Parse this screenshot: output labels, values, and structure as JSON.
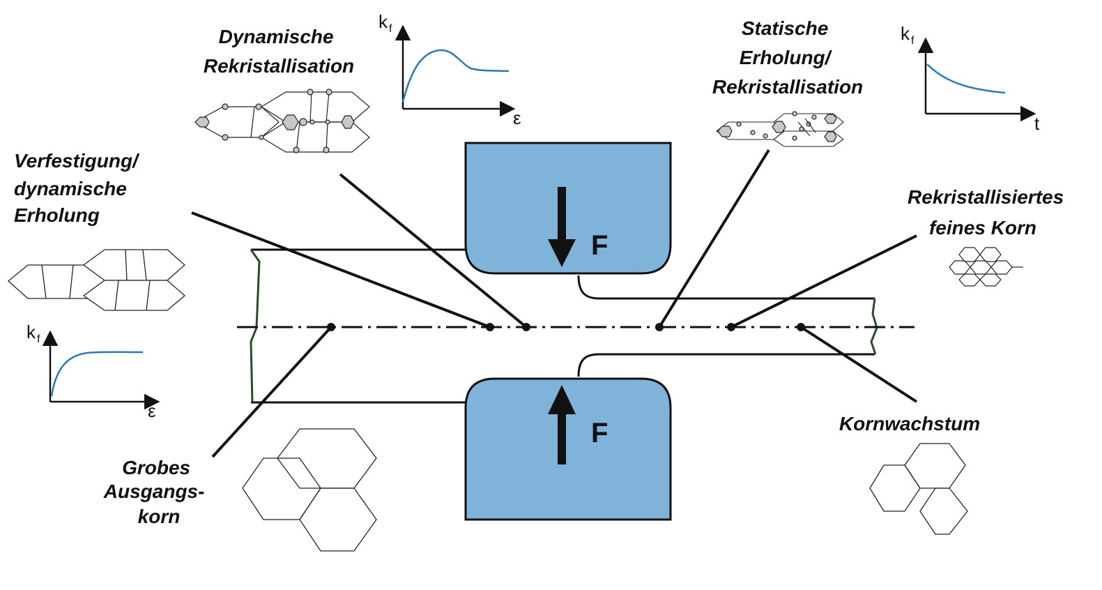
{
  "colors": {
    "die_fill": "#7fb3d9",
    "curve": "#2a78b8",
    "ink": "#111111"
  },
  "labels": {
    "dyn_rex": [
      "Dynamische",
      "Rekristallisation"
    ],
    "stat_rex": [
      "Statische",
      "Erholung/",
      "Rekristallisation"
    ],
    "verfestigung": [
      "Verfestigung/",
      "dynamische",
      "Erholung"
    ],
    "rex_fine": [
      "Rekristallisiertes",
      "feines Korn"
    ],
    "grobes": [
      "Grobes",
      "Ausgangs-",
      "korn"
    ],
    "kornwachstum": [
      "Kornwachstum"
    ]
  },
  "force_label": "F",
  "axes": {
    "y_main": "k",
    "y_sub": "f",
    "x_strain": "ε",
    "x_time": "t"
  },
  "icons": {
    "arrow_down": "force-arrow-down-icon",
    "arrow_up": "force-arrow-up-icon"
  }
}
